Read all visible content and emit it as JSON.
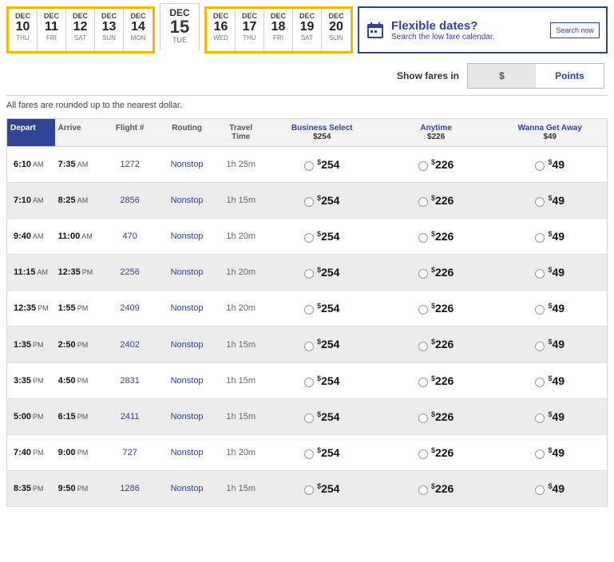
{
  "dates_left": [
    {
      "month": "DEC",
      "day": "10",
      "dow": "THU"
    },
    {
      "month": "DEC",
      "day": "11",
      "dow": "FRI"
    },
    {
      "month": "DEC",
      "day": "12",
      "dow": "SAT"
    },
    {
      "month": "DEC",
      "day": "13",
      "dow": "SUN"
    },
    {
      "month": "DEC",
      "day": "14",
      "dow": "MON"
    }
  ],
  "date_selected": {
    "month": "DEC",
    "day": "15",
    "dow": "TUE"
  },
  "dates_right": [
    {
      "month": "DEC",
      "day": "16",
      "dow": "WED"
    },
    {
      "month": "DEC",
      "day": "17",
      "dow": "THU"
    },
    {
      "month": "DEC",
      "day": "18",
      "dow": "FRI"
    },
    {
      "month": "DEC",
      "day": "19",
      "dow": "SAT"
    },
    {
      "month": "DEC",
      "day": "20",
      "dow": "SUN"
    }
  ],
  "flex": {
    "title": "Flexible dates?",
    "sub": "Search the low fare calendar.",
    "btn": "Search now"
  },
  "fares_toggle": {
    "label": "Show fares in",
    "dollar": "$",
    "points": "Points"
  },
  "note": "All fares are rounded up to the nearest dollar.",
  "headers": {
    "depart": "Depart",
    "arrive": "Arrive",
    "flight": "Flight #",
    "routing": "Routing",
    "time": "Travel Time",
    "bs": "Business Select",
    "bs_p": "$254",
    "any": "Anytime",
    "any_p": "$226",
    "wga": "Wanna Get Away",
    "wga_p": "$49"
  },
  "flights": [
    {
      "dep": "6:10",
      "dap": "AM",
      "arr": "7:35",
      "aap": "AM",
      "num": "1272",
      "route": "Nonstop",
      "tt": "1h 25m",
      "bs": "254",
      "any": "226",
      "wga": "49"
    },
    {
      "dep": "7:10",
      "dap": "AM",
      "arr": "8:25",
      "aap": "AM",
      "num": "2856",
      "route": "Nonstop",
      "tt": "1h 15m",
      "bs": "254",
      "any": "226",
      "wga": "49"
    },
    {
      "dep": "9:40",
      "dap": "AM",
      "arr": "11:00",
      "aap": "AM",
      "num": "470",
      "route": "Nonstop",
      "tt": "1h 20m",
      "bs": "254",
      "any": "226",
      "wga": "49"
    },
    {
      "dep": "11:15",
      "dap": "AM",
      "arr": "12:35",
      "aap": "PM",
      "num": "2256",
      "route": "Nonstop",
      "tt": "1h 20m",
      "bs": "254",
      "any": "226",
      "wga": "49"
    },
    {
      "dep": "12:35",
      "dap": "PM",
      "arr": "1:55",
      "aap": "PM",
      "num": "2409",
      "route": "Nonstop",
      "tt": "1h 20m",
      "bs": "254",
      "any": "226",
      "wga": "49"
    },
    {
      "dep": "1:35",
      "dap": "PM",
      "arr": "2:50",
      "aap": "PM",
      "num": "2402",
      "route": "Nonstop",
      "tt": "1h 15m",
      "bs": "254",
      "any": "226",
      "wga": "49"
    },
    {
      "dep": "3:35",
      "dap": "PM",
      "arr": "4:50",
      "aap": "PM",
      "num": "2831",
      "route": "Nonstop",
      "tt": "1h 15m",
      "bs": "254",
      "any": "226",
      "wga": "49"
    },
    {
      "dep": "5:00",
      "dap": "PM",
      "arr": "6:15",
      "aap": "PM",
      "num": "2411",
      "route": "Nonstop",
      "tt": "1h 15m",
      "bs": "254",
      "any": "226",
      "wga": "49"
    },
    {
      "dep": "7:40",
      "dap": "PM",
      "arr": "9:00",
      "aap": "PM",
      "num": "727",
      "route": "Nonstop",
      "tt": "1h 20m",
      "bs": "254",
      "any": "226",
      "wga": "49"
    },
    {
      "dep": "8:35",
      "dap": "PM",
      "arr": "9:50",
      "aap": "PM",
      "num": "1286",
      "route": "Nonstop",
      "tt": "1h 15m",
      "bs": "254",
      "any": "226",
      "wga": "49"
    }
  ],
  "colors": {
    "accent": "#304497",
    "highlight": "#f5b800"
  }
}
